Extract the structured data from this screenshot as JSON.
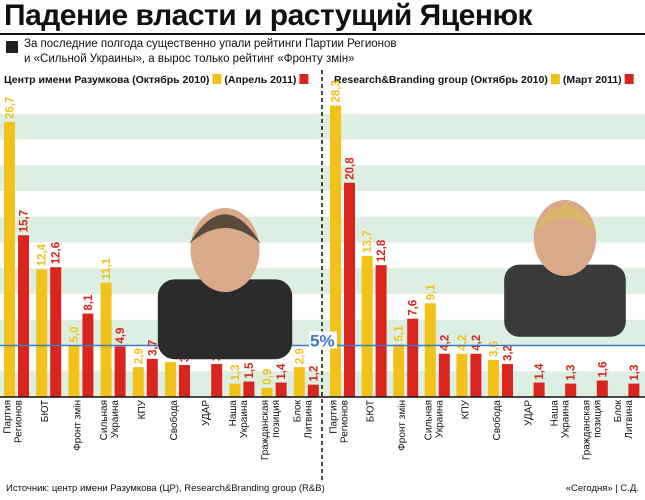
{
  "title": "Падение власти и растущий Яценюк",
  "subtitle_line1": "За последние полгода существенно упали рейтинги Партии Регионов",
  "subtitle_line2": "и «Сильной Украины», а вырос только рейтинг «Фронту змін»",
  "threshold_label": "5%",
  "source": "Источник: центр имени Разумкова (ЦР), Research&Branding group (R&B)",
  "credit": "«Сегодня» | С.Д.",
  "colors": {
    "yellow": "#f2c21a",
    "red": "#d8261e",
    "stripe": "#dcefe2",
    "threshold": "#3a7ac8"
  },
  "chart_data": [
    {
      "type": "bar",
      "source_label": "Центр имени Разумкова",
      "series": [
        {
          "name": "(Октябрь 2010)",
          "color": "#f2c21a",
          "values": [
            26.7,
            12.4,
            5.0,
            11.1,
            2.9,
            3.4,
            null,
            1.3,
            0.9,
            2.9
          ]
        },
        {
          "name": "(Апрель 2011)",
          "color": "#d8261e",
          "values": [
            15.7,
            12.6,
            8.1,
            4.9,
            3.7,
            3.1,
            3.2,
            1.5,
            1.4,
            1.2
          ]
        }
      ],
      "value_labels": [
        [
          "26,7",
          "12,4",
          "5,0",
          "11,1",
          "2,9",
          "3,4",
          "",
          "1,3",
          "0,9",
          "2,9"
        ],
        [
          "15,7",
          "12,6",
          "8,1",
          "4,9",
          "3,7",
          "3,1",
          "3,2",
          "1,5",
          "1,4",
          "1,2"
        ]
      ],
      "categories": [
        "Партия Регионов",
        "БЮТ",
        "Фронт змін",
        "Сильная Украина",
        "КПУ",
        "Свобода",
        "УДАР",
        "Наша Украина",
        "Гражданская позиция",
        "Блок Литвина"
      ],
      "ylim": [
        0,
        30
      ],
      "threshold": 5
    },
    {
      "type": "bar",
      "source_label": "Research&Branding group",
      "series": [
        {
          "name": "(Октябрь 2010)",
          "color": "#f2c21a",
          "values": [
            28.3,
            13.7,
            5.1,
            9.1,
            4.2,
            3.6,
            null,
            null,
            null,
            null
          ]
        },
        {
          "name": "(Март 2011)",
          "color": "#d8261e",
          "values": [
            20.8,
            12.8,
            7.6,
            4.2,
            4.2,
            3.2,
            1.4,
            1.3,
            1.6,
            1.3
          ]
        }
      ],
      "value_labels": [
        [
          "28,3",
          "13,7",
          "5,1",
          "9,1",
          "4,2",
          "3,6",
          "",
          "",
          "",
          ""
        ],
        [
          "20,8",
          "12,8",
          "7,6",
          "4,2",
          "4,2",
          "3,2",
          "1,4",
          "1,3",
          "1,6",
          "1,3"
        ]
      ],
      "categories": [
        "Партия Регионов",
        "БЮТ",
        "Фронт змін",
        "Сильная Украина",
        "КПУ",
        "Свобода",
        "УДАР",
        "Наша Украина",
        "Гражданская позиция",
        "Блок Литвина"
      ],
      "ylim": [
        0,
        30
      ],
      "threshold": 5
    }
  ]
}
